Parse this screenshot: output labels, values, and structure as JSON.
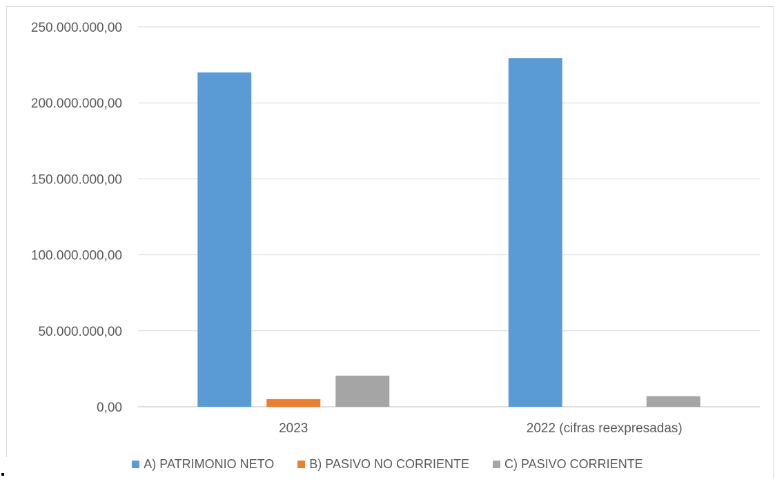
{
  "chart_data": {
    "type": "bar",
    "categories": [
      "2023",
      "2022 (cifras reexpresadas)"
    ],
    "series": [
      {
        "name": "A) PATRIMONIO NETO",
        "color": "#5b9bd5",
        "values": [
          220000000,
          229500000
        ]
      },
      {
        "name": "B) PASIVO NO CORRIENTE",
        "color": "#ed7d31",
        "values": [
          5000000,
          0
        ]
      },
      {
        "name": "C) PASIVO CORRIENTE",
        "color": "#a5a5a5",
        "values": [
          20500000,
          7000000
        ]
      }
    ],
    "ylim": [
      0,
      250000000
    ],
    "yticks": [
      0,
      50000000,
      100000000,
      150000000,
      200000000,
      250000000
    ],
    "ytick_labels": [
      "0,00",
      "50.000.000,00",
      "100.000.000,00",
      "150.000.000,00",
      "200.000.000,00",
      "250.000.000,00"
    ],
    "gridlines": true,
    "legend_position": "bottom"
  }
}
